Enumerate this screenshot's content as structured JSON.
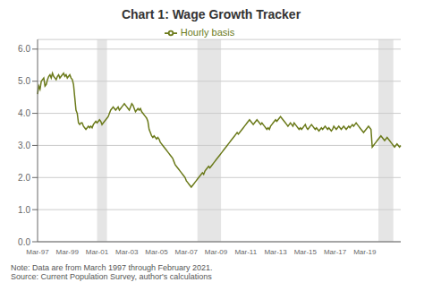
{
  "chart_data": {
    "type": "line",
    "title": "Chart 1: Wage Growth Tracker",
    "note": "Note: Data are from March 1997 through February 2021.\nSource: Current Population Survey, author's calculations",
    "categories": [
      "Mar-97",
      null,
      null,
      null,
      null,
      null,
      null,
      null,
      null,
      null,
      null,
      null,
      null,
      null,
      null,
      null,
      null,
      null,
      null,
      null,
      null,
      null,
      null,
      null,
      "Mar-99",
      null,
      null,
      null,
      null,
      null,
      null,
      null,
      null,
      null,
      null,
      null,
      null,
      null,
      null,
      null,
      null,
      null,
      null,
      null,
      null,
      null,
      null,
      null,
      "Mar-01",
      null,
      null,
      null,
      null,
      null,
      null,
      null,
      null,
      null,
      null,
      null,
      null,
      null,
      null,
      null,
      null,
      null,
      null,
      null,
      null,
      null,
      null,
      null,
      "Mar-03",
      null,
      null,
      null,
      null,
      null,
      null,
      null,
      null,
      null,
      null,
      null,
      null,
      null,
      null,
      null,
      null,
      null,
      null,
      null,
      null,
      null,
      null,
      null,
      "Mar-05",
      null,
      null,
      null,
      null,
      null,
      null,
      null,
      null,
      null,
      null,
      null,
      null,
      null,
      null,
      null,
      null,
      null,
      null,
      null,
      null,
      null,
      null,
      null,
      "Mar-07",
      null,
      null,
      null,
      null,
      null,
      null,
      null,
      null,
      null,
      null,
      null,
      null,
      null,
      null,
      null,
      null,
      null,
      null,
      null,
      null,
      null,
      null,
      null,
      "Mar-09",
      null,
      null,
      null,
      null,
      null,
      null,
      null,
      null,
      null,
      null,
      null,
      null,
      null,
      null,
      null,
      null,
      null,
      null,
      null,
      null,
      null,
      null,
      null,
      "Mar-11",
      null,
      null,
      null,
      null,
      null,
      null,
      null,
      null,
      null,
      null,
      null,
      null,
      null,
      null,
      null,
      null,
      null,
      null,
      null,
      null,
      null,
      null,
      null,
      "Mar-13",
      null,
      null,
      null,
      null,
      null,
      null,
      null,
      null,
      null,
      null,
      null,
      null,
      null,
      null,
      null,
      null,
      null,
      null,
      null,
      null,
      null,
      null,
      null,
      "Mar-15",
      null,
      null,
      null,
      null,
      null,
      null,
      null,
      null,
      null,
      null,
      null,
      null,
      null,
      null,
      null,
      null,
      null,
      null,
      null,
      null,
      null,
      null,
      null,
      "Mar-17",
      null,
      null,
      null,
      null,
      null,
      null,
      null,
      null,
      null,
      null,
      null,
      null,
      null,
      null,
      null,
      null,
      null,
      null,
      null,
      null,
      null,
      null,
      null,
      "Mar-19",
      null,
      null,
      null,
      null,
      null,
      null,
      null,
      null,
      null,
      null,
      null,
      null,
      null,
      null,
      null,
      null,
      null,
      null,
      null,
      null,
      null,
      null,
      null,
      null,
      null,
      null,
      null,
      null,
      null
    ],
    "series": [
      {
        "name": "Hourly basis",
        "color": "#6b7a1a",
        "values": [
          4.6,
          4.85,
          4.75,
          5.0,
          5.05,
          5.1,
          4.85,
          4.9,
          5.05,
          5.15,
          5.2,
          5.1,
          5.25,
          5.15,
          5.1,
          5.05,
          5.15,
          5.2,
          5.1,
          5.15,
          5.2,
          5.25,
          5.15,
          5.2,
          5.1,
          5.15,
          5.2,
          5.1,
          5.05,
          4.9,
          4.5,
          4.1,
          4.0,
          3.7,
          3.65,
          3.7,
          3.7,
          3.6,
          3.55,
          3.5,
          3.55,
          3.6,
          3.55,
          3.6,
          3.55,
          3.65,
          3.7,
          3.75,
          3.7,
          3.75,
          3.8,
          3.75,
          3.65,
          3.7,
          3.75,
          3.8,
          3.85,
          3.9,
          4.0,
          4.1,
          4.15,
          4.2,
          4.15,
          4.1,
          4.15,
          4.2,
          4.1,
          4.15,
          4.2,
          4.25,
          4.3,
          4.25,
          4.2,
          4.15,
          4.1,
          4.2,
          4.3,
          4.25,
          4.15,
          4.05,
          4.1,
          4.15,
          4.1,
          4.15,
          4.05,
          4.0,
          3.95,
          3.9,
          3.85,
          3.75,
          3.5,
          3.4,
          3.3,
          3.25,
          3.3,
          3.25,
          3.2,
          3.25,
          3.2,
          3.1,
          3.05,
          3.0,
          2.95,
          2.9,
          2.85,
          2.8,
          2.75,
          2.7,
          2.65,
          2.6,
          2.5,
          2.4,
          2.35,
          2.3,
          2.25,
          2.2,
          2.15,
          2.1,
          2.05,
          2.0,
          1.9,
          1.85,
          1.8,
          1.75,
          1.7,
          1.75,
          1.8,
          1.85,
          1.9,
          1.95,
          2.0,
          2.05,
          2.1,
          2.15,
          2.1,
          2.2,
          2.25,
          2.3,
          2.35,
          2.3,
          2.35,
          2.4,
          2.45,
          2.5,
          2.55,
          2.6,
          2.65,
          2.7,
          2.75,
          2.8,
          2.85,
          2.9,
          2.95,
          3.0,
          3.05,
          3.1,
          3.15,
          3.2,
          3.25,
          3.3,
          3.35,
          3.4,
          3.35,
          3.4,
          3.45,
          3.5,
          3.55,
          3.6,
          3.65,
          3.7,
          3.75,
          3.8,
          3.75,
          3.7,
          3.65,
          3.7,
          3.75,
          3.8,
          3.75,
          3.7,
          3.65,
          3.7,
          3.65,
          3.6,
          3.55,
          3.5,
          3.55,
          3.5,
          3.6,
          3.65,
          3.7,
          3.75,
          3.8,
          3.75,
          3.8,
          3.85,
          3.9,
          3.85,
          3.8,
          3.75,
          3.7,
          3.65,
          3.6,
          3.65,
          3.7,
          3.65,
          3.6,
          3.7,
          3.65,
          3.6,
          3.55,
          3.5,
          3.55,
          3.5,
          3.55,
          3.6,
          3.65,
          3.55,
          3.5,
          3.55,
          3.6,
          3.65,
          3.6,
          3.55,
          3.5,
          3.55,
          3.5,
          3.45,
          3.5,
          3.55,
          3.5,
          3.55,
          3.6,
          3.55,
          3.5,
          3.55,
          3.5,
          3.45,
          3.5,
          3.6,
          3.55,
          3.5,
          3.55,
          3.6,
          3.55,
          3.5,
          3.55,
          3.6,
          3.55,
          3.5,
          3.55,
          3.6,
          3.55,
          3.6,
          3.65,
          3.6,
          3.65,
          3.7,
          3.65,
          3.6,
          3.55,
          3.5,
          3.45,
          3.4,
          3.45,
          3.5,
          3.55,
          3.6,
          3.55,
          3.5,
          2.95,
          3.0,
          3.05,
          3.1,
          3.15,
          3.2,
          3.25,
          3.3,
          3.25,
          3.2,
          3.15,
          3.2,
          3.25,
          3.2,
          3.15,
          3.1,
          3.05,
          3.0,
          2.95,
          3.0,
          3.05,
          3.0,
          2.95,
          3.0
        ]
      }
    ],
    "ylim": [
      0.0,
      6.3
    ],
    "yticks": [
      {
        "value": 0.0,
        "label": "0.0"
      },
      {
        "value": 1.0,
        "label": "1.0"
      },
      {
        "value": 2.0,
        "label": "2.0"
      },
      {
        "value": 3.0,
        "label": "3.0"
      },
      {
        "value": 4.0,
        "label": "4.0"
      },
      {
        "value": 5.0,
        "label": "5.0"
      },
      {
        "value": 6.0,
        "label": "6.0"
      }
    ],
    "grid": true,
    "legend": "top",
    "recession_bands": [
      [
        48,
        56
      ],
      [
        129,
        148
      ],
      [
        275,
        287
      ]
    ]
  }
}
